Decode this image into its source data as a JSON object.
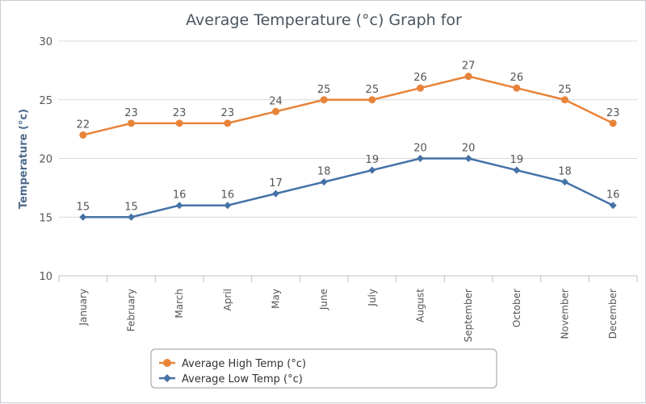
{
  "chart_data": {
    "type": "line",
    "title": "Average Temperature (°c) Graph for",
    "xlabel": "",
    "ylabel": "Temperature (°c)",
    "ylim": [
      10,
      30
    ],
    "yticks": [
      10,
      15,
      20,
      25,
      30
    ],
    "grid": true,
    "legend_position": "bottom-center",
    "categories": [
      "January",
      "February",
      "March",
      "April",
      "May",
      "June",
      "July",
      "August",
      "September",
      "October",
      "November",
      "December"
    ],
    "series": [
      {
        "name": "Average High Temp (°c)",
        "color": "#e8843a",
        "marker": "circle",
        "values": [
          22,
          23,
          23,
          23,
          24,
          25,
          25,
          26,
          27,
          26,
          25,
          23
        ]
      },
      {
        "name": "Average Low Temp (°c)",
        "color": "#4572a7",
        "marker": "diamond",
        "values": [
          15,
          15,
          16,
          16,
          17,
          18,
          19,
          20,
          20,
          19,
          18,
          16
        ]
      }
    ]
  }
}
